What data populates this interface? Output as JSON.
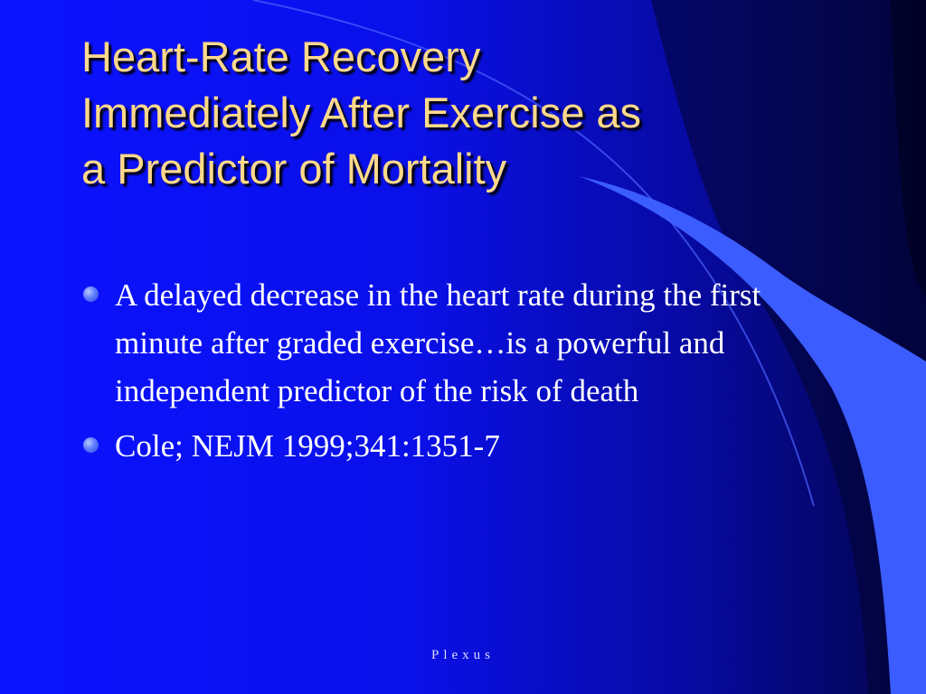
{
  "slide": {
    "title_lines": [
      "Heart-Rate Recovery",
      "Immediately After Exercise as",
      "a Predictor of Mortality"
    ],
    "bullets": [
      "A delayed decrease in the heart rate during the first minute after graded exercise…is a powerful and independent predictor of the risk of death",
      "Cole; NEJM 1999;341:1351-7"
    ],
    "footer": "Plexus"
  },
  "colors": {
    "background": "#0b12ff",
    "title_text": "#ffd98a",
    "body_text": "#ffffff",
    "accent_swoosh": "#3b5cff",
    "bullet": "#5f7dff"
  }
}
